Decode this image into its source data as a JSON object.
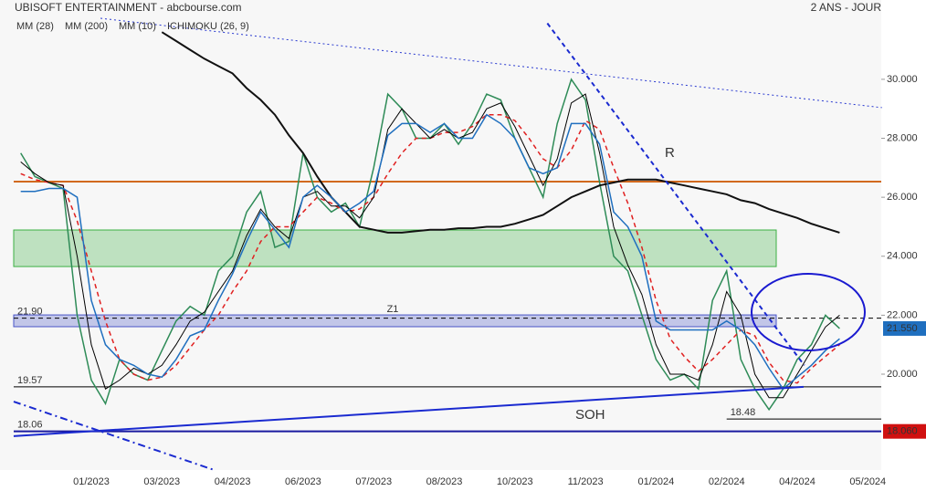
{
  "chart_data": {
    "type": "line",
    "title": "UBISOFT ENTERTAINMENT - abcbourse.com",
    "subtitle": "2 ANS - JOUR",
    "categories": [
      null,
      null,
      null,
      null,
      null,
      "01/2023",
      null,
      null,
      null,
      null,
      "03/2023",
      null,
      null,
      null,
      null,
      "04/2023",
      null,
      null,
      null,
      null,
      "06/2023",
      null,
      null,
      null,
      null,
      "07/2023",
      null,
      null,
      null,
      null,
      "08/2023",
      null,
      null,
      null,
      null,
      "10/2023",
      null,
      null,
      null,
      null,
      "11/2023",
      null,
      null,
      null,
      null,
      "01/2024",
      null,
      null,
      null,
      null,
      "02/2024",
      null,
      null,
      null,
      null,
      "04/2024",
      null,
      null,
      null,
      null,
      "05/2024"
    ],
    "ylim": [
      16.75,
      32.69
    ],
    "yticks": [
      {
        "value": 20,
        "label": "20.000"
      },
      {
        "value": 22,
        "label": "22.000"
      },
      {
        "value": 24,
        "label": "24.000"
      },
      {
        "value": 26,
        "label": "26.000"
      },
      {
        "value": 28,
        "label": "28.000"
      },
      {
        "value": 30,
        "label": "30.000"
      }
    ],
    "grid": false,
    "series": [
      {
        "color": "#2e8b57",
        "style": "solid",
        "width": 1.5,
        "values": [
          27.5,
          26.7,
          26.5,
          26.3,
          22,
          19.8,
          19,
          20.5,
          20,
          19.8,
          20.8,
          21.8,
          22.3,
          22,
          23.5,
          24,
          25.5,
          26.2,
          24.3,
          24.5,
          27.5,
          26,
          25.5,
          25.8,
          25,
          27,
          29.5,
          29,
          28,
          28,
          28.5,
          27.8,
          28.5,
          29.5,
          29.3,
          28,
          27,
          26,
          28.5,
          30,
          29.3,
          26.5,
          24,
          23.5,
          22,
          20.5,
          19.8,
          20,
          19.5,
          22.5,
          23.5,
          20.5,
          19.5,
          18.8,
          19.5,
          20.5,
          21,
          22,
          21.55,
          null,
          null
        ]
      },
      {
        "name": "MM (28)",
        "color": "#e02020",
        "style": "dashed",
        "width": 1.5,
        "values": [
          26.8,
          26.6,
          26.5,
          26.4,
          25.2,
          23.5,
          21.8,
          20.5,
          20,
          19.8,
          19.9,
          20.3,
          20.9,
          21.5,
          22,
          22.8,
          23.5,
          24.5,
          25,
          25,
          25.5,
          26,
          25.8,
          25.5,
          25.6,
          26,
          26.8,
          27.5,
          28,
          28,
          28.2,
          28.2,
          28.4,
          28.8,
          28.8,
          28.6,
          28,
          27.3,
          27,
          27.6,
          28.6,
          28.3,
          27,
          25.8,
          24.3,
          22.5,
          21.2,
          20.6,
          20.1,
          20.5,
          21,
          21.5,
          21.3,
          20.4,
          19.8,
          19.7,
          20.2,
          20.6,
          21,
          null,
          null
        ]
      },
      {
        "name": "MM (200)",
        "color": "#111111",
        "style": "solid",
        "width": 2,
        "values": [
          null,
          null,
          null,
          null,
          null,
          null,
          null,
          null,
          null,
          null,
          31.6,
          31.3,
          31,
          30.7,
          30.45,
          30.2,
          29.7,
          29.3,
          28.8,
          28.1,
          27.5,
          26.7,
          26,
          25.5,
          25,
          24.9,
          24.8,
          24.8,
          24.85,
          24.9,
          24.9,
          24.95,
          24.95,
          25,
          25,
          25.1,
          25.25,
          25.4,
          25.7,
          26,
          26.2,
          26.4,
          26.5,
          26.6,
          26.6,
          26.6,
          26.5,
          26.4,
          26.3,
          26.2,
          26.1,
          25.9,
          25.8,
          25.6,
          25.45,
          25.3,
          25.1,
          24.95,
          24.8,
          null,
          null
        ]
      },
      {
        "name": "MM (10)",
        "color": "#000000",
        "style": "solid",
        "width": 1,
        "values": [
          27.2,
          26.8,
          26.5,
          26.4,
          24,
          21,
          19.5,
          19.8,
          20.2,
          20,
          20.3,
          21,
          21.8,
          22.1,
          22.8,
          23.5,
          24.7,
          25.6,
          25,
          24.6,
          26,
          26.2,
          25.7,
          25.7,
          25.3,
          26,
          28.3,
          29,
          28.5,
          28,
          28.3,
          28,
          28.2,
          29,
          29.2,
          28.4,
          27.4,
          26.4,
          27.3,
          29.2,
          29.5,
          27.5,
          25,
          23.7,
          22.7,
          21,
          20,
          20,
          19.8,
          21,
          22.8,
          22,
          20,
          19.2,
          19.2,
          20,
          20.8,
          21.6,
          22,
          null,
          null
        ]
      },
      {
        "name": "ICHIMOKU (26, 9)",
        "color": "#1f6fbf",
        "style": "solid",
        "width": 1.5,
        "values": [
          26.2,
          26.2,
          26.3,
          26.3,
          26,
          22.5,
          21,
          20.5,
          20.3,
          20,
          19.9,
          20.5,
          21.3,
          21.5,
          22.5,
          23.4,
          24.5,
          25.5,
          24.9,
          24.3,
          26,
          26.4,
          26,
          25.5,
          25.8,
          26.2,
          28.1,
          28.5,
          28.5,
          28.2,
          28.5,
          28,
          28,
          28.8,
          28.5,
          28,
          27,
          26.8,
          27,
          28.5,
          28.5,
          27.8,
          25.5,
          25,
          24,
          21.8,
          21.5,
          21.5,
          21.5,
          21.5,
          21.8,
          21.5,
          21,
          20.2,
          19.5,
          19.9,
          20.3,
          20.8,
          21.2,
          null,
          null
        ]
      }
    ],
    "zones": [
      {
        "range": [
          23.65,
          24.89
        ],
        "color": "#3cb043"
      },
      {
        "range": [
          21.61,
          22.01
        ],
        "color": "#4a55c8",
        "label": "Z1"
      }
    ],
    "levels": [
      {
        "value": 26.53,
        "color": "#d2691e",
        "width": 2,
        "style": "solid"
      },
      {
        "value": 21.9,
        "color": "#000000",
        "width": 1,
        "style": "dashed",
        "label": "21.90"
      },
      {
        "value": 19.57,
        "color": "#000000",
        "width": 1,
        "style": "solid",
        "label": "19.57"
      },
      {
        "value": 18.06,
        "color": "#1a1aa0",
        "width": 2,
        "style": "solid",
        "label": "18.06",
        "tag": "18.060",
        "tag_color": "#d01010"
      },
      {
        "value": 18.48,
        "color": "#000000",
        "width": 1,
        "style": "solid",
        "label": "18.48",
        "from": 50
      }
    ],
    "trendlines": [
      {
        "x": [
          -0.5,
          55.45
        ],
        "y": [
          17.9,
          19.57
        ],
        "color": "#1a2ad0",
        "style": "solid",
        "width": 2,
        "label": "SOH"
      },
      {
        "x": [
          5.65,
          61
        ],
        "y": [
          32.07,
          29.04
        ],
        "color": "#2a3ad0",
        "style": "dotted",
        "width": 1
      },
      {
        "x": [
          37.3,
          55.5
        ],
        "y": [
          31.9,
          20.3
        ],
        "color": "#1a2ad0",
        "style": "dashed",
        "width": 2,
        "label": "R"
      },
      {
        "x": [
          -0.5,
          13.7
        ],
        "y": [
          19.07,
          16.75
        ],
        "color": "#1a2ad0",
        "style": "dashdot",
        "width": 2
      }
    ],
    "last": {
      "value": 21.55,
      "label": "21.550",
      "color": "#1f6fbf"
    }
  }
}
